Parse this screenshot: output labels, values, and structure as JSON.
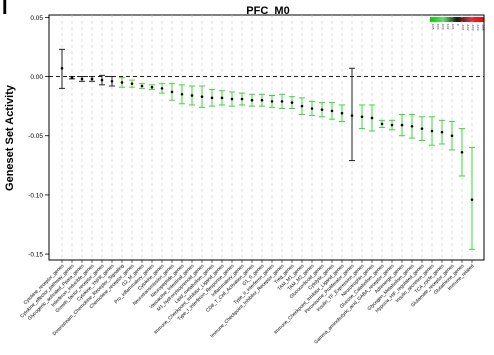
{
  "panel_label": "I",
  "chart_data": {
    "type": "scatter",
    "title": "PFC_M0",
    "xlabel": "",
    "ylabel": "Geneset Set Activity",
    "ylim": [
      -0.155,
      0.052
    ],
    "yticks": [
      0.05,
      0.0,
      -0.05,
      -0.1,
      -0.15
    ],
    "ytick_labels": [
      "0.05",
      "0.00",
      "-0.05",
      "-0.10",
      "-0.15"
    ],
    "reference_line": 0,
    "grid": "vertical dashed lines between categories",
    "legend": {
      "type": "color gradient",
      "placement": "top-right",
      "colors": [
        "#00cc00",
        "#66dd66",
        "#1a1a1a",
        "#dd3333",
        "#ff0000"
      ],
      "labels": [
        "0.05",
        "0.04",
        "0.03",
        "0.02",
        "0.01",
        "0",
        "-0.01",
        "-0.02",
        "-0.03",
        "-0.04",
        "-0.05"
      ]
    },
    "categories": [
      "Cytokine_receptor_genes",
      "Cytokine_effector_pathway_genes",
      "Glycogenic_activated_Ppara_genes",
      "Interferon_inducible_genes",
      "Growth_factor_receptor_genes",
      "Cytokine_TNFR_genes",
      "Downstream_Chemokine_Receptor_Signaling",
      "Chemokine_receptor_genes",
      "G2_M_genes",
      "Pro_inflammatory_genes",
      "Cytokine_genes",
      "Neurotransmission_genes",
      "Neuropeptide_genes",
      "Vasoactive_Intestinal_genes",
      "M1_hydroxyisoprenoid_genes",
      "Lipid_metabolism_genes",
      "Immune_Checkpoint_Inhibitor_Ligand_genes",
      "Type_I_interferon_Response_genes",
      "Inflammatory_genes",
      "CD8_T_Cell_Activation_genes",
      "G1_S_genes",
      "Type_II_interferon_genes",
      "Immune_Checkpoint_Inhibitor_Receptor_genes",
      "Treg_genes",
      "TAM_M1_genes",
      "TAM_M2_genes",
      "Glucocorticoid_genes",
      "Cytolytic_genes",
      "Immune_Checkpoint_Inhibitor_Ligand_genes",
      "Peroxisome_Proliferator_genes",
      "Insulin_TF_Expression_genes",
      "Neurotrophin_genes",
      "Glucose_Catabolism_genes",
      "Gamma_aminobutyric_acid_GABA_receptor_genes",
      "Adrenergic_genes",
      "Glycogen_Metabolism_genes",
      "Hypoxia_HIF_regulated_genes",
      "Insulin_secretion_genes",
      "TCA_cycle_genes",
      "Glutamate_receptor_genes",
      "Glutathione_genes",
      "Immune_related"
    ],
    "series": [
      {
        "mean": [
          0.007,
          -0.001,
          -0.002,
          -0.002,
          -0.003,
          -0.004,
          -0.005,
          -0.006,
          -0.008,
          -0.009,
          -0.01,
          -0.013,
          -0.015,
          -0.016,
          -0.017,
          -0.018,
          -0.018,
          -0.019,
          -0.019,
          -0.02,
          -0.02,
          -0.021,
          -0.021,
          -0.022,
          -0.025,
          -0.027,
          -0.028,
          -0.029,
          -0.031,
          -0.033,
          -0.034,
          -0.035,
          -0.04,
          -0.041,
          -0.041,
          -0.042,
          -0.044,
          -0.046,
          -0.047,
          -0.05,
          -0.064,
          -0.104
        ],
        "lower": [
          -0.01,
          -0.002,
          -0.004,
          -0.004,
          -0.007,
          -0.008,
          -0.009,
          -0.009,
          -0.01,
          -0.011,
          -0.014,
          -0.02,
          -0.023,
          -0.024,
          -0.026,
          -0.025,
          -0.024,
          -0.025,
          -0.024,
          -0.025,
          -0.025,
          -0.026,
          -0.027,
          -0.027,
          -0.032,
          -0.033,
          -0.034,
          -0.036,
          -0.038,
          -0.071,
          -0.044,
          -0.046,
          -0.043,
          -0.045,
          -0.05,
          -0.052,
          -0.054,
          -0.058,
          -0.057,
          -0.062,
          -0.084,
          -0.146
        ],
        "upper": [
          0.023,
          0.0,
          0.0,
          0.0,
          0.001,
          0.0,
          -0.001,
          -0.003,
          -0.006,
          -0.007,
          -0.006,
          -0.006,
          -0.007,
          -0.008,
          -0.008,
          -0.011,
          -0.012,
          -0.013,
          -0.014,
          -0.015,
          -0.015,
          -0.016,
          -0.015,
          -0.017,
          -0.018,
          -0.021,
          -0.022,
          -0.022,
          -0.024,
          0.007,
          -0.024,
          -0.024,
          -0.037,
          -0.037,
          -0.032,
          -0.032,
          -0.034,
          -0.034,
          -0.037,
          -0.038,
          -0.044,
          -0.06
        ],
        "colors": [
          "#222222",
          "#222222",
          "#222222",
          "#222222",
          "#222222",
          "#222222",
          "#66bb33",
          "#66cc33",
          "#55cc33",
          "#44cc33",
          "#44dd33",
          "#44dd33",
          "#33dd33",
          "#33dd33",
          "#33dd33",
          "#33dd33",
          "#33dd33",
          "#33dd33",
          "#33dd33",
          "#33dd33",
          "#33dd33",
          "#33dd33",
          "#33dd33",
          "#33dd33",
          "#33dd33",
          "#33dd33",
          "#33dd33",
          "#33dd33",
          "#33dd33",
          "#222222",
          "#33dd33",
          "#33dd33",
          "#33dd33",
          "#33dd33",
          "#33dd33",
          "#33dd33",
          "#33dd33",
          "#33dd33",
          "#33dd33",
          "#33dd33",
          "#33dd33",
          "#33dd33"
        ]
      }
    ]
  }
}
